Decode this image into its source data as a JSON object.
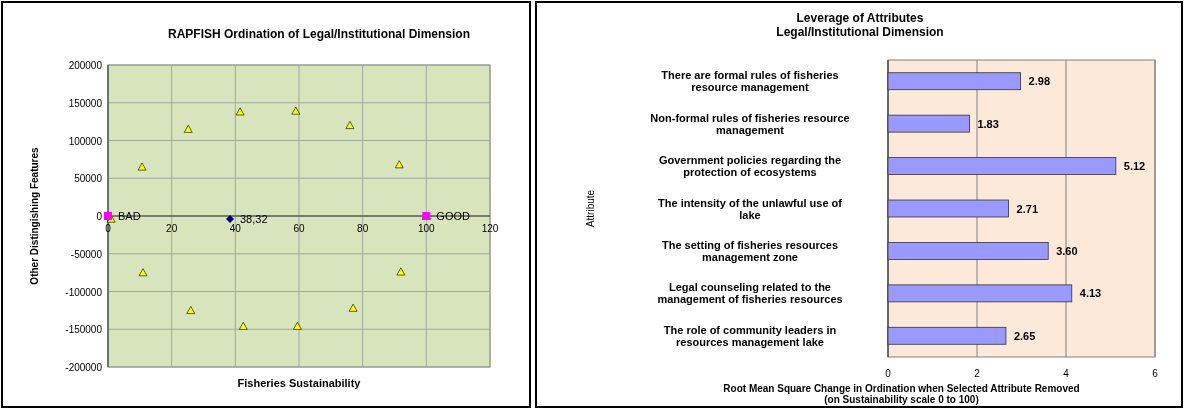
{
  "chart_data": [
    {
      "type": "scatter",
      "title": "RAPFISH Ordination of  Legal/Institutional Dimension",
      "xlabel": "Fisheries Sustainability",
      "ylabel": "Other Distingishing Features",
      "xlim": [
        0,
        120
      ],
      "xticks": [
        0,
        20,
        40,
        60,
        80,
        100,
        120
      ],
      "ylim": [
        -200000,
        200000
      ],
      "yticks": [
        -200000,
        -150000,
        -100000,
        -50000,
        0,
        50000,
        100000,
        150000,
        200000
      ],
      "grid": true,
      "series": [
        {
          "color": "#ffff00",
          "marker": "triangle",
          "x": [
            10.7,
            25.2,
            41.5,
            59,
            76,
            91.5,
            11,
            26,
            42.5,
            59.5,
            77,
            92,
            1,
            100
          ],
          "values": [
            65000,
            115000,
            138000,
            139000,
            120000,
            68000,
            -75000,
            -125000,
            -146000,
            -146000,
            -122000,
            -74000,
            -4000,
            0
          ]
        },
        {
          "color": "#ff00ff",
          "marker": "square",
          "x": [
            0,
            100
          ],
          "values": [
            0,
            0
          ]
        },
        {
          "color": "#000080",
          "marker": "diamond",
          "x": [
            38.32
          ],
          "values": [
            -4000
          ]
        }
      ],
      "annotations": [
        {
          "text": "BAD",
          "x": 0,
          "y": 0
        },
        {
          "text": "GOOD",
          "x": 100,
          "y": 0
        },
        {
          "text": "38,32",
          "x": 38.32,
          "y": -4000
        }
      ]
    },
    {
      "type": "bar",
      "orientation": "horizontal",
      "title": "Leverage of Attributes\nLegal/Institutional  Dimension",
      "xlabel": "Root Mean Square Change in Ordination when Selected Attribute Removed\n(on Sustainability scale 0 to 100)",
      "ylabel": "Attribute",
      "categories": [
        "There are formal rules of fisheries resource management",
        "Non-formal rules of fisheries resource management",
        "Government policies regarding the protection of ecosystems",
        "The intensity of the unlawful use of lake",
        "The setting of fisheries resources management zone",
        "Legal counseling related to the management of fisheries resources",
        "The role of community leaders in resources management lake"
      ],
      "values": [
        2.98,
        1.83,
        5.12,
        2.71,
        3.6,
        4.13,
        2.65
      ],
      "value_labels": [
        "2.98",
        "1.83",
        "5.12",
        "2.71",
        "3.60",
        "4.13",
        "2.65"
      ],
      "color": "#9999ff",
      "xlim": [
        0,
        6
      ],
      "xticks": [
        0,
        2,
        4,
        6
      ],
      "grid": "x"
    }
  ]
}
